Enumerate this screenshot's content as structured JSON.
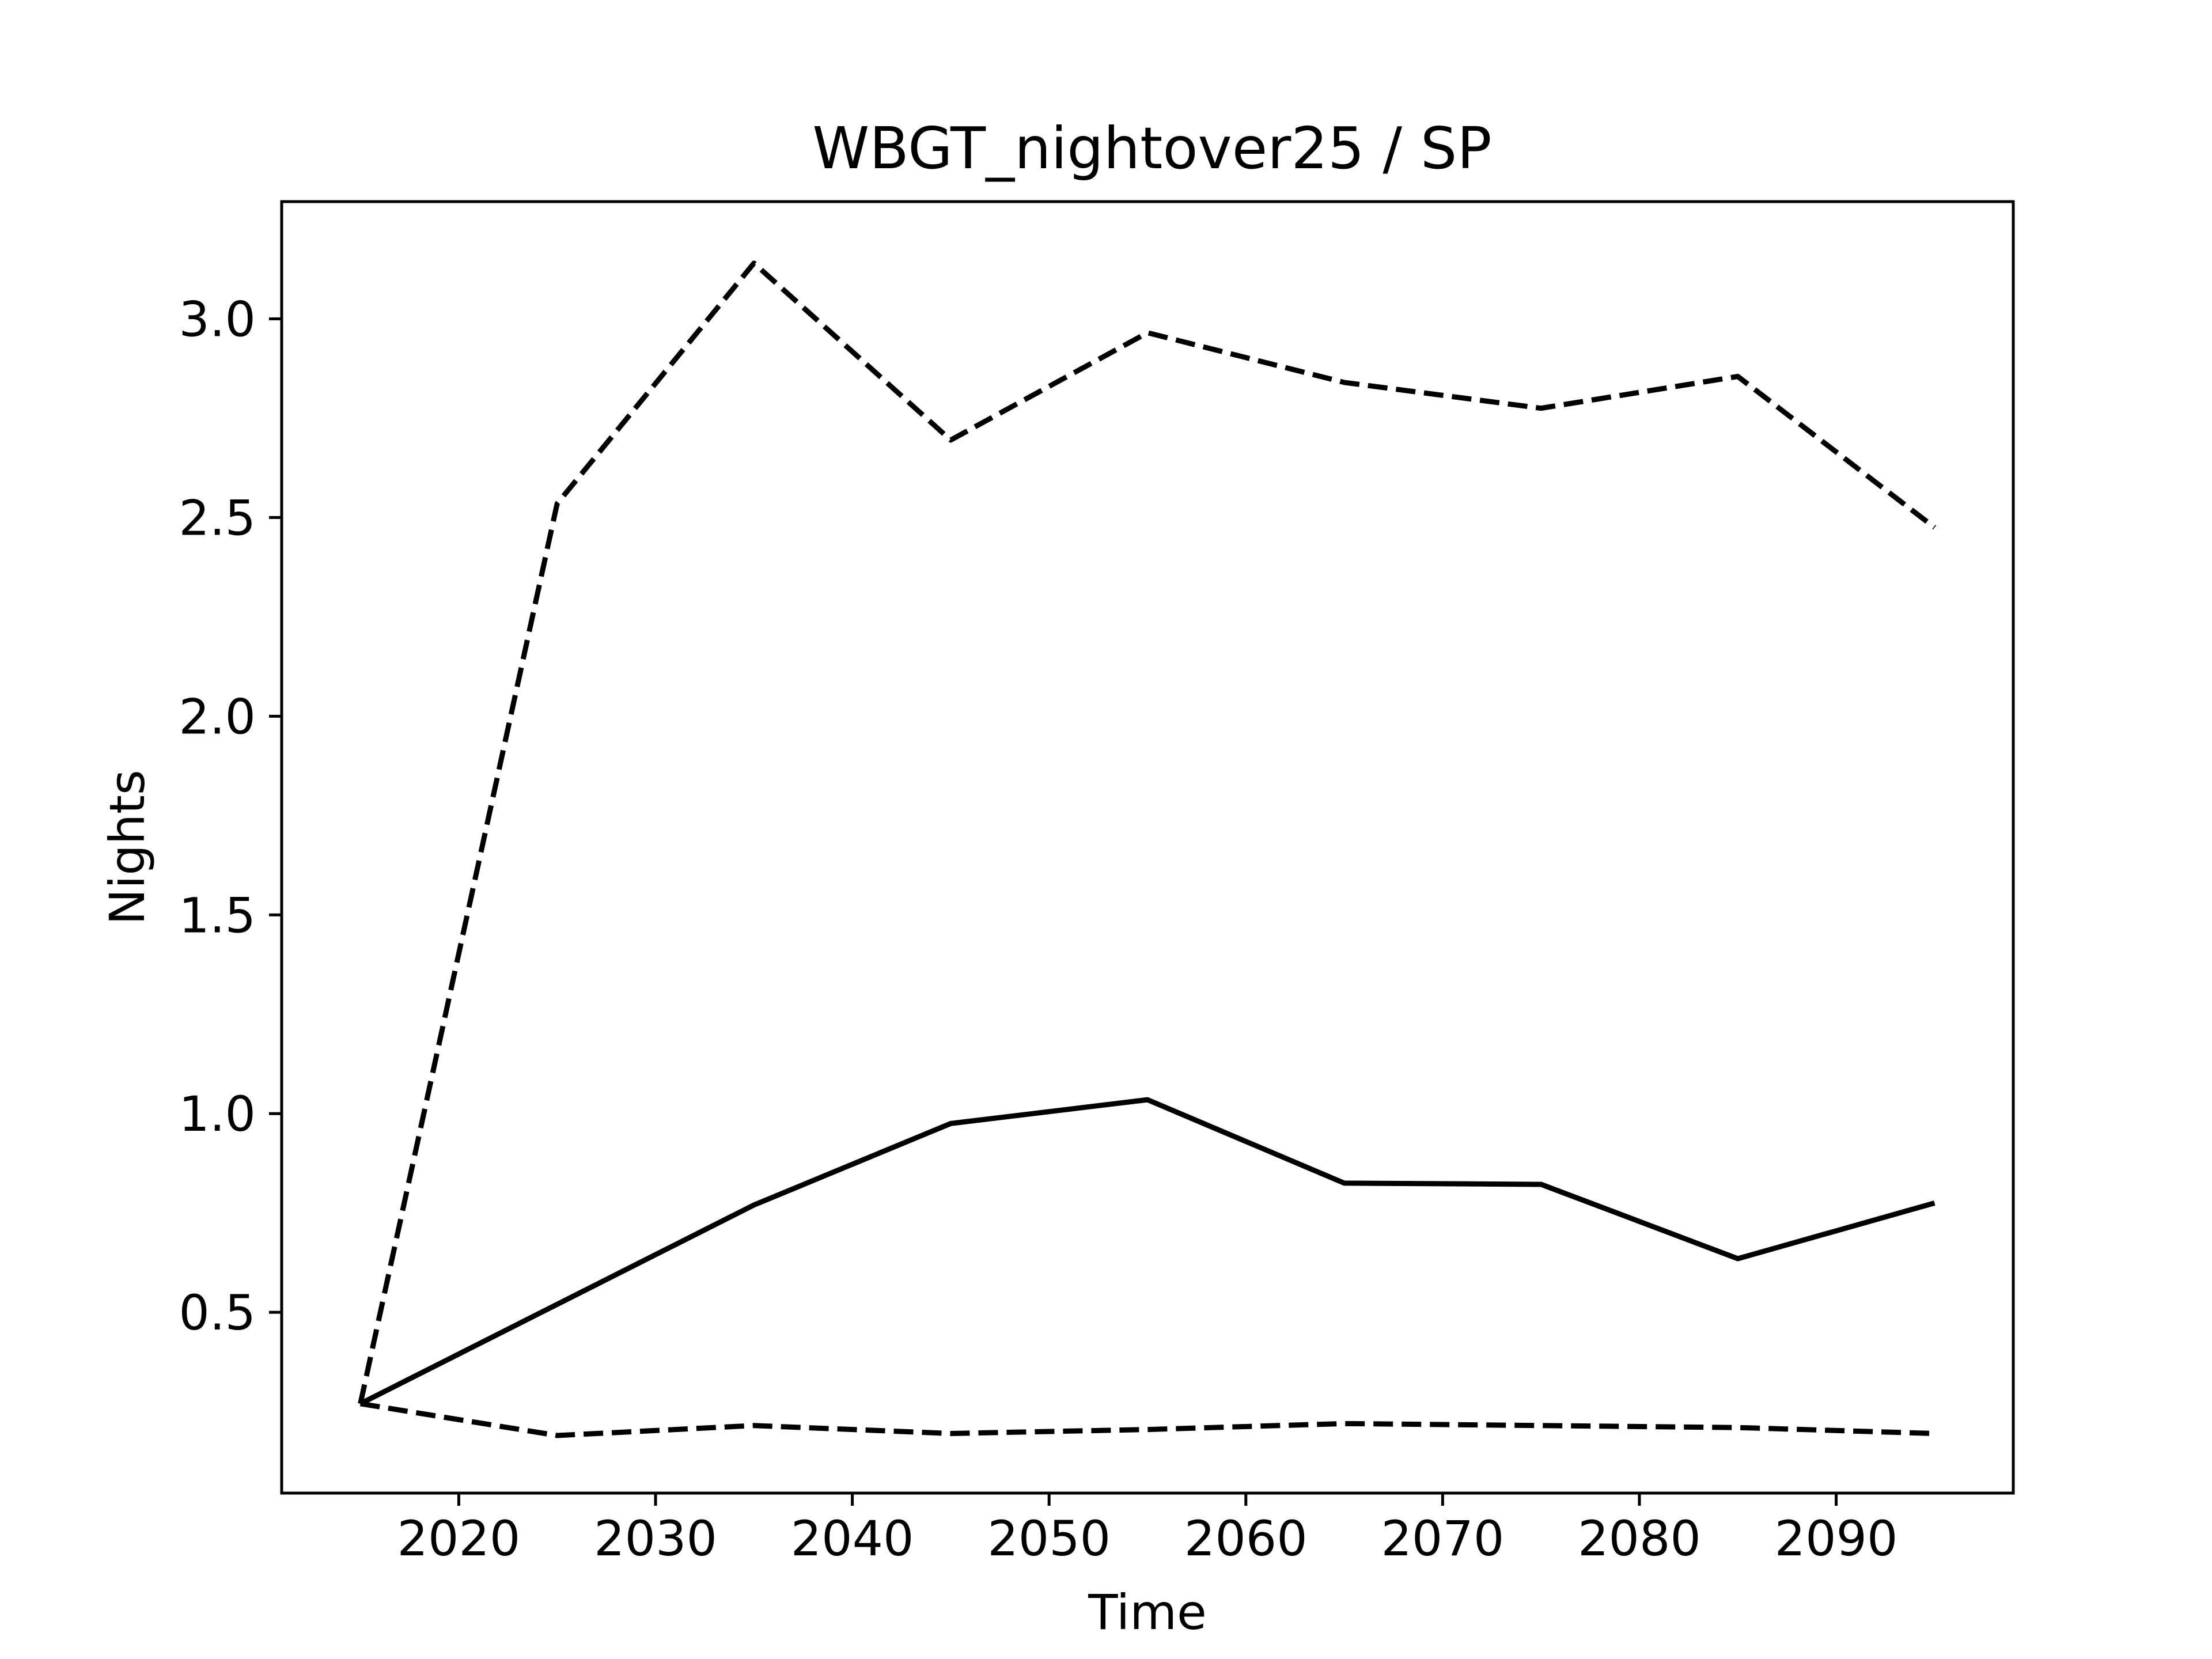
{
  "chart_data": {
    "type": "line",
    "title": "WBGT_nightover25 / SP",
    "xlabel": "Time",
    "ylabel": "Nights",
    "xlim": [
      2011,
      2099
    ],
    "ylim": [
      0.045,
      3.295
    ],
    "xticks": [
      2020,
      2030,
      2040,
      2050,
      2060,
      2070,
      2080,
      2090
    ],
    "xtick_labels": [
      "2020",
      "2030",
      "2040",
      "2050",
      "2060",
      "2070",
      "2080",
      "2090"
    ],
    "yticks": [
      0.5,
      1.0,
      1.5,
      2.0,
      2.5,
      3.0
    ],
    "ytick_labels": [
      "0.5",
      "1.0",
      "1.5",
      "2.0",
      "2.5",
      "3.0"
    ],
    "grid": false,
    "legend": "none",
    "x": [
      2015,
      2025,
      2035,
      2045,
      2055,
      2065,
      2075,
      2085,
      2095
    ],
    "series": [
      {
        "style": "solid",
        "color": "#000000",
        "values": [
          0.27,
          0.52,
          0.77,
          0.975,
          1.035,
          0.825,
          0.822,
          0.635,
          0.775
        ]
      },
      {
        "style": "dashed",
        "color": "#000000",
        "values": [
          0.27,
          2.535,
          3.14,
          2.695,
          2.965,
          2.84,
          2.775,
          2.855,
          2.475
        ]
      },
      {
        "style": "dashed",
        "color": "#000000",
        "values": [
          0.27,
          0.19,
          0.215,
          0.195,
          0.205,
          0.22,
          0.215,
          0.21,
          0.195
        ]
      }
    ]
  }
}
